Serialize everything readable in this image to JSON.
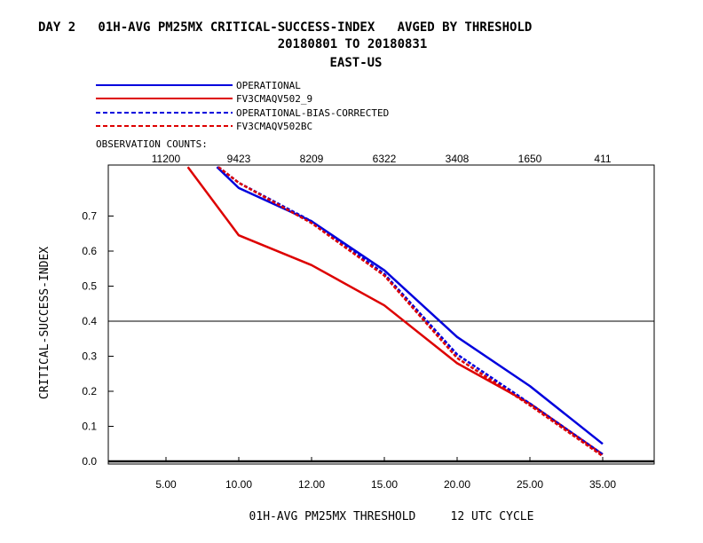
{
  "title": {
    "line1": "DAY 2   01H-AVG PM25MX CRITICAL-SUCCESS-INDEX   AVGED BY THRESHOLD",
    "line2": "20180801 TO 20180831",
    "line3": "EAST-US"
  },
  "legend": [
    {
      "label": "OPERATIONAL",
      "color": "#0000dd",
      "dash": "solid"
    },
    {
      "label": "FV3CMAQV502_9",
      "color": "#dd0000",
      "dash": "solid"
    },
    {
      "label": "OPERATIONAL-BIAS-CORRECTED",
      "color": "#0000dd",
      "dash": "dashed"
    },
    {
      "label": "FV3CMAQV502BC",
      "color": "#dd0000",
      "dash": "dashed"
    }
  ],
  "observation_counts": {
    "label": "OBSERVATION COUNTS:",
    "values": [
      "11200",
      "9423",
      "8209",
      "6322",
      "3408",
      "1650",
      "411"
    ]
  },
  "chart_data": {
    "type": "line",
    "x_categories": [
      "5.00",
      "10.00",
      "12.00",
      "15.00",
      "20.00",
      "25.00",
      "35.00"
    ],
    "xlabel": "01H-AVG PM25MX THRESHOLD     12 UTC CYCLE",
    "ylabel": "CRITICAL-SUCCESS-INDEX",
    "yticks": [
      "0.0",
      "0.1",
      "0.2",
      "0.3",
      "0.4",
      "0.5",
      "0.6",
      "0.7"
    ],
    "ylim": [
      0,
      0.82
    ],
    "reference_line": 0.4,
    "series": [
      {
        "name": "OPERATIONAL",
        "color": "#0000dd",
        "dash": "solid",
        "points": [
          [
            0.7,
            0.84
          ],
          [
            1,
            0.78
          ],
          [
            2,
            0.685
          ],
          [
            3,
            0.545
          ],
          [
            4,
            0.355
          ],
          [
            5,
            0.215
          ],
          [
            6,
            0.05
          ]
        ]
      },
      {
        "name": "FV3CMAQV502_9",
        "color": "#dd0000",
        "dash": "solid",
        "points": [
          [
            0.3,
            0.84
          ],
          [
            1,
            0.645
          ],
          [
            2,
            0.56
          ],
          [
            3,
            0.445
          ],
          [
            4,
            0.28
          ],
          [
            5,
            0.165
          ],
          [
            6,
            0.02
          ]
        ]
      },
      {
        "name": "OPERATIONAL-BIAS-CORRECTED",
        "color": "#0000dd",
        "dash": "dashed",
        "points": [
          [
            0.72,
            0.84
          ],
          [
            1,
            0.795
          ],
          [
            2,
            0.685
          ],
          [
            3,
            0.535
          ],
          [
            4,
            0.305
          ],
          [
            5,
            0.165
          ],
          [
            6,
            0.02
          ]
        ]
      },
      {
        "name": "FV3CMAQV502BC",
        "color": "#dd0000",
        "dash": "dashed",
        "points": [
          [
            0.72,
            0.84
          ],
          [
            1,
            0.795
          ],
          [
            2,
            0.68
          ],
          [
            3,
            0.53
          ],
          [
            4,
            0.295
          ],
          [
            5,
            0.16
          ],
          [
            6,
            0.015
          ]
        ]
      }
    ]
  }
}
